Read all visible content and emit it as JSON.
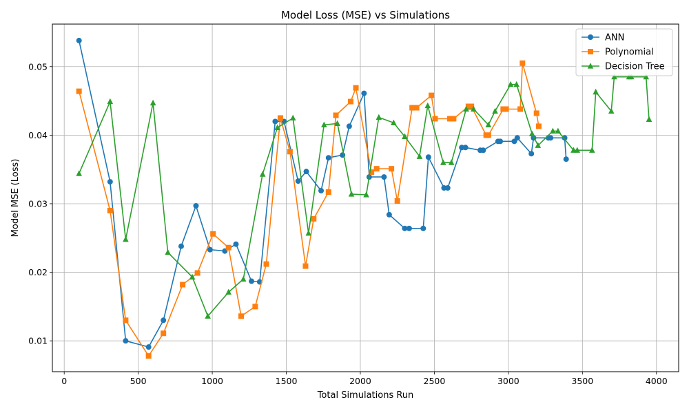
{
  "chart_data": {
    "type": "line",
    "title": "Model Loss (MSE) vs Simulations",
    "xlabel": "Total Simulations Run",
    "ylabel": "Model MSE (Loss)",
    "xlim": [
      -80,
      4150
    ],
    "ylim": [
      0.0055,
      0.0562
    ],
    "xticks": [
      0,
      500,
      1000,
      1500,
      2000,
      2500,
      3000,
      3500,
      4000
    ],
    "xtick_labels": [
      "0",
      "500",
      "1000",
      "1500",
      "2000",
      "2500",
      "3000",
      "3500",
      "4000"
    ],
    "yticks": [
      0.01,
      0.02,
      0.03,
      0.04,
      0.05
    ],
    "ytick_labels": [
      "0.01",
      "0.02",
      "0.03",
      "0.04",
      "0.05"
    ],
    "grid": true,
    "legend_position": "top-right",
    "series": [
      {
        "name": "ANN",
        "color": "#1f77b4",
        "marker": "circle",
        "points": [
          [
            100,
            0.0538
          ],
          [
            310,
            0.0332
          ],
          [
            415,
            0.01
          ],
          [
            570,
            0.0091
          ],
          [
            670,
            0.013
          ],
          [
            790,
            0.0238
          ],
          [
            890,
            0.0297
          ],
          [
            985,
            0.0233
          ],
          [
            1085,
            0.0231
          ],
          [
            1160,
            0.0241
          ],
          [
            1265,
            0.0187
          ],
          [
            1320,
            0.0186
          ],
          [
            1425,
            0.042
          ],
          [
            1485,
            0.042
          ],
          [
            1580,
            0.0333
          ],
          [
            1635,
            0.0347
          ],
          [
            1735,
            0.0319
          ],
          [
            1785,
            0.0367
          ],
          [
            1880,
            0.0371
          ],
          [
            1925,
            0.0413
          ],
          [
            2025,
            0.0461
          ],
          [
            2060,
            0.0339
          ],
          [
            2160,
            0.0339
          ],
          [
            2195,
            0.0284
          ],
          [
            2300,
            0.0264
          ],
          [
            2330,
            0.0264
          ],
          [
            2425,
            0.0264
          ],
          [
            2460,
            0.0368
          ],
          [
            2565,
            0.0323
          ],
          [
            2590,
            0.0323
          ],
          [
            2685,
            0.0382
          ],
          [
            2710,
            0.0382
          ],
          [
            2810,
            0.0378
          ],
          [
            2830,
            0.0378
          ],
          [
            2930,
            0.0391
          ],
          [
            2945,
            0.0391
          ],
          [
            3040,
            0.0391
          ],
          [
            3060,
            0.0396
          ],
          [
            3155,
            0.0373
          ],
          [
            3170,
            0.0396
          ],
          [
            3270,
            0.0396
          ],
          [
            3285,
            0.0396
          ],
          [
            3380,
            0.0396
          ],
          [
            3390,
            0.0365
          ]
        ]
      },
      {
        "name": "Polynomial",
        "color": "#ff7f0e",
        "marker": "square",
        "points": [
          [
            100,
            0.0464
          ],
          [
            310,
            0.029
          ],
          [
            415,
            0.013
          ],
          [
            570,
            0.0078
          ],
          [
            670,
            0.0111
          ],
          [
            800,
            0.0182
          ],
          [
            900,
            0.0199
          ],
          [
            1005,
            0.0256
          ],
          [
            1110,
            0.0236
          ],
          [
            1195,
            0.0136
          ],
          [
            1290,
            0.015
          ],
          [
            1365,
            0.0212
          ],
          [
            1460,
            0.0425
          ],
          [
            1525,
            0.0376
          ],
          [
            1630,
            0.0209
          ],
          [
            1685,
            0.0278
          ],
          [
            1785,
            0.0317
          ],
          [
            1835,
            0.0429
          ],
          [
            1935,
            0.0449
          ],
          [
            1970,
            0.0469
          ],
          [
            2075,
            0.0346
          ],
          [
            2110,
            0.0351
          ],
          [
            2210,
            0.0351
          ],
          [
            2250,
            0.0304
          ],
          [
            2350,
            0.044
          ],
          [
            2380,
            0.044
          ],
          [
            2480,
            0.0458
          ],
          [
            2505,
            0.0424
          ],
          [
            2605,
            0.0424
          ],
          [
            2630,
            0.0424
          ],
          [
            2730,
            0.0442
          ],
          [
            2750,
            0.0442
          ],
          [
            2850,
            0.04
          ],
          [
            2865,
            0.04
          ],
          [
            2965,
            0.0438
          ],
          [
            2985,
            0.0438
          ],
          [
            3080,
            0.0438
          ],
          [
            3095,
            0.0505
          ],
          [
            3190,
            0.0432
          ],
          [
            3205,
            0.0413
          ]
        ]
      },
      {
        "name": "Decision Tree",
        "color": "#2ca02c",
        "marker": "triangle",
        "points": [
          [
            100,
            0.0344
          ],
          [
            310,
            0.0449
          ],
          [
            415,
            0.0248
          ],
          [
            600,
            0.0447
          ],
          [
            700,
            0.0229
          ],
          [
            865,
            0.0193
          ],
          [
            970,
            0.0136
          ],
          [
            1110,
            0.0171
          ],
          [
            1210,
            0.019
          ],
          [
            1340,
            0.0343
          ],
          [
            1440,
            0.0411
          ],
          [
            1545,
            0.0425
          ],
          [
            1650,
            0.0257
          ],
          [
            1755,
            0.0415
          ],
          [
            1845,
            0.0417
          ],
          [
            1940,
            0.0314
          ],
          [
            2040,
            0.0313
          ],
          [
            2125,
            0.0426
          ],
          [
            2225,
            0.0418
          ],
          [
            2300,
            0.0398
          ],
          [
            2400,
            0.0369
          ],
          [
            2455,
            0.0443
          ],
          [
            2560,
            0.036
          ],
          [
            2615,
            0.036
          ],
          [
            2715,
            0.0438
          ],
          [
            2765,
            0.0438
          ],
          [
            2865,
            0.0415
          ],
          [
            2910,
            0.0435
          ],
          [
            3015,
            0.0474
          ],
          [
            3055,
            0.0474
          ],
          [
            3160,
            0.0402
          ],
          [
            3200,
            0.0385
          ],
          [
            3300,
            0.0406
          ],
          [
            3335,
            0.0406
          ],
          [
            3440,
            0.0378
          ],
          [
            3465,
            0.0378
          ],
          [
            3565,
            0.0378
          ],
          [
            3590,
            0.0463
          ],
          [
            3695,
            0.0435
          ],
          [
            3715,
            0.0485
          ],
          [
            3815,
            0.0485
          ],
          [
            3830,
            0.0485
          ],
          [
            3930,
            0.0485
          ],
          [
            3950,
            0.0423
          ]
        ]
      }
    ]
  }
}
